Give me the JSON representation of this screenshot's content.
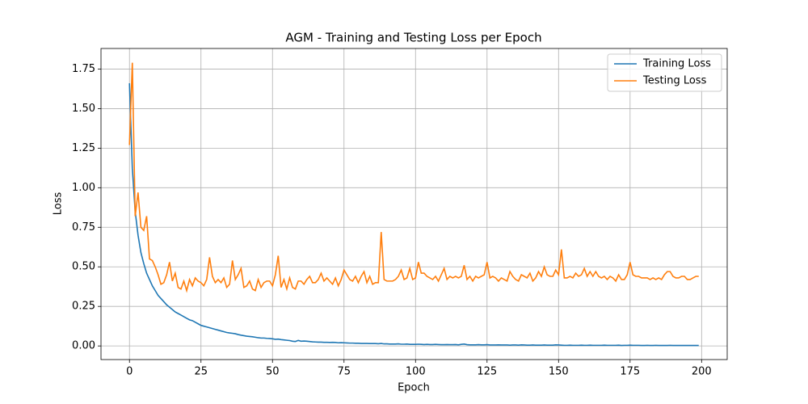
{
  "chart_data": {
    "type": "line",
    "title": "AGM - Training and Testing Loss per Epoch",
    "x_label": "Epoch",
    "y_label": "Loss",
    "x": [
      0,
      1,
      2,
      3,
      4,
      5,
      6,
      7,
      8,
      9,
      10,
      11,
      12,
      13,
      14,
      15,
      16,
      17,
      18,
      19,
      20,
      21,
      22,
      23,
      24,
      25,
      26,
      27,
      28,
      29,
      30,
      31,
      32,
      33,
      34,
      35,
      36,
      37,
      38,
      39,
      40,
      41,
      42,
      43,
      44,
      45,
      46,
      47,
      48,
      49,
      50,
      51,
      52,
      53,
      54,
      55,
      56,
      57,
      58,
      59,
      60,
      61,
      62,
      63,
      64,
      65,
      66,
      67,
      68,
      69,
      70,
      71,
      72,
      73,
      74,
      75,
      76,
      77,
      78,
      79,
      80,
      81,
      82,
      83,
      84,
      85,
      86,
      87,
      88,
      89,
      90,
      91,
      92,
      93,
      94,
      95,
      96,
      97,
      98,
      99,
      100,
      101,
      102,
      103,
      104,
      105,
      106,
      107,
      108,
      109,
      110,
      111,
      112,
      113,
      114,
      115,
      116,
      117,
      118,
      119,
      120,
      121,
      122,
      123,
      124,
      125,
      126,
      127,
      128,
      129,
      130,
      131,
      132,
      133,
      134,
      135,
      136,
      137,
      138,
      139,
      140,
      141,
      142,
      143,
      144,
      145,
      146,
      147,
      148,
      149,
      150,
      151,
      152,
      153,
      154,
      155,
      156,
      157,
      158,
      159,
      160,
      161,
      162,
      163,
      164,
      165,
      166,
      167,
      168,
      169,
      170,
      171,
      172,
      173,
      174,
      175,
      176,
      177,
      178,
      179,
      180,
      181,
      182,
      183,
      184,
      185,
      186,
      187,
      188,
      189,
      190,
      191,
      192,
      193,
      194,
      195,
      196,
      197,
      198,
      199
    ],
    "series": [
      {
        "name": "Training Loss",
        "color": "#1f77b4",
        "values": [
          1.66,
          1.12,
          0.85,
          0.7,
          0.59,
          0.52,
          0.46,
          0.42,
          0.38,
          0.35,
          0.32,
          0.3,
          0.28,
          0.26,
          0.245,
          0.23,
          0.215,
          0.205,
          0.195,
          0.185,
          0.175,
          0.165,
          0.16,
          0.15,
          0.14,
          0.13,
          0.125,
          0.12,
          0.115,
          0.11,
          0.105,
          0.1,
          0.095,
          0.09,
          0.085,
          0.082,
          0.08,
          0.077,
          0.072,
          0.068,
          0.065,
          0.062,
          0.06,
          0.058,
          0.055,
          0.052,
          0.05,
          0.05,
          0.048,
          0.047,
          0.045,
          0.042,
          0.043,
          0.04,
          0.038,
          0.036,
          0.034,
          0.03,
          0.028,
          0.035,
          0.03,
          0.031,
          0.03,
          0.028,
          0.026,
          0.025,
          0.024,
          0.024,
          0.023,
          0.023,
          0.022,
          0.023,
          0.022,
          0.02,
          0.021,
          0.02,
          0.019,
          0.018,
          0.018,
          0.017,
          0.017,
          0.016,
          0.016,
          0.016,
          0.015,
          0.015,
          0.015,
          0.014,
          0.016,
          0.013,
          0.013,
          0.012,
          0.012,
          0.012,
          0.013,
          0.011,
          0.011,
          0.012,
          0.01,
          0.01,
          0.01,
          0.011,
          0.01,
          0.009,
          0.01,
          0.009,
          0.009,
          0.01,
          0.009,
          0.008,
          0.008,
          0.009,
          0.008,
          0.008,
          0.009,
          0.007,
          0.01,
          0.012,
          0.008,
          0.007,
          0.007,
          0.007,
          0.008,
          0.007,
          0.007,
          0.008,
          0.006,
          0.006,
          0.006,
          0.007,
          0.006,
          0.006,
          0.006,
          0.005,
          0.006,
          0.006,
          0.005,
          0.007,
          0.006,
          0.005,
          0.005,
          0.006,
          0.005,
          0.005,
          0.005,
          0.006,
          0.005,
          0.005,
          0.005,
          0.007,
          0.006,
          0.005,
          0.004,
          0.004,
          0.005,
          0.004,
          0.004,
          0.004,
          0.005,
          0.004,
          0.004,
          0.005,
          0.004,
          0.004,
          0.004,
          0.004,
          0.005,
          0.004,
          0.004,
          0.004,
          0.004,
          0.005,
          0.003,
          0.004,
          0.004,
          0.005,
          0.004,
          0.004,
          0.004,
          0.003,
          0.003,
          0.004,
          0.003,
          0.003,
          0.004,
          0.003,
          0.003,
          0.003,
          0.003,
          0.004,
          0.003,
          0.003,
          0.003,
          0.003,
          0.003,
          0.003,
          0.003,
          0.003,
          0.003,
          0.003
        ]
      },
      {
        "name": "Testing Loss",
        "color": "#ff7f0e",
        "values": [
          1.27,
          1.79,
          0.82,
          0.97,
          0.75,
          0.73,
          0.82,
          0.55,
          0.54,
          0.5,
          0.45,
          0.39,
          0.4,
          0.45,
          0.53,
          0.41,
          0.46,
          0.37,
          0.36,
          0.41,
          0.35,
          0.42,
          0.38,
          0.43,
          0.41,
          0.4,
          0.38,
          0.42,
          0.56,
          0.44,
          0.4,
          0.42,
          0.4,
          0.43,
          0.37,
          0.39,
          0.54,
          0.42,
          0.45,
          0.49,
          0.37,
          0.38,
          0.41,
          0.36,
          0.35,
          0.42,
          0.37,
          0.4,
          0.41,
          0.41,
          0.38,
          0.45,
          0.57,
          0.37,
          0.42,
          0.36,
          0.43,
          0.37,
          0.36,
          0.41,
          0.41,
          0.39,
          0.42,
          0.44,
          0.4,
          0.4,
          0.42,
          0.46,
          0.41,
          0.43,
          0.41,
          0.39,
          0.43,
          0.38,
          0.42,
          0.48,
          0.45,
          0.42,
          0.41,
          0.44,
          0.4,
          0.44,
          0.47,
          0.4,
          0.44,
          0.39,
          0.4,
          0.4,
          0.72,
          0.42,
          0.41,
          0.41,
          0.41,
          0.42,
          0.44,
          0.48,
          0.42,
          0.43,
          0.49,
          0.42,
          0.43,
          0.53,
          0.46,
          0.46,
          0.44,
          0.43,
          0.42,
          0.44,
          0.41,
          0.45,
          0.49,
          0.42,
          0.44,
          0.43,
          0.44,
          0.43,
          0.44,
          0.51,
          0.42,
          0.44,
          0.41,
          0.44,
          0.43,
          0.44,
          0.45,
          0.53,
          0.43,
          0.44,
          0.43,
          0.41,
          0.43,
          0.42,
          0.41,
          0.47,
          0.44,
          0.42,
          0.41,
          0.45,
          0.44,
          0.43,
          0.46,
          0.41,
          0.43,
          0.47,
          0.44,
          0.5,
          0.45,
          0.44,
          0.44,
          0.48,
          0.45,
          0.61,
          0.43,
          0.43,
          0.44,
          0.43,
          0.46,
          0.44,
          0.45,
          0.49,
          0.44,
          0.47,
          0.44,
          0.47,
          0.44,
          0.43,
          0.44,
          0.42,
          0.44,
          0.43,
          0.41,
          0.45,
          0.42,
          0.42,
          0.45,
          0.53,
          0.45,
          0.44,
          0.44,
          0.43,
          0.43,
          0.43,
          0.42,
          0.43,
          0.42,
          0.43,
          0.42,
          0.45,
          0.47,
          0.47,
          0.44,
          0.43,
          0.43,
          0.44,
          0.44,
          0.42,
          0.42,
          0.43,
          0.44,
          0.44
        ]
      }
    ],
    "xlim": [
      -9.95,
      208.95
    ],
    "xticks": [
      0,
      25,
      50,
      75,
      100,
      125,
      150,
      175,
      200
    ],
    "ylim": [
      -0.086,
      1.88
    ],
    "yticks": [
      {
        "value": 0,
        "label": "0.00"
      },
      0.25,
      {
        "value": 0.5,
        "label": "0.50"
      },
      0.75,
      {
        "value": 1,
        "label": "1.00"
      },
      1.25,
      {
        "value": 1.5,
        "label": "1.50"
      },
      1.75
    ],
    "grid": true,
    "legend": "upper right"
  }
}
